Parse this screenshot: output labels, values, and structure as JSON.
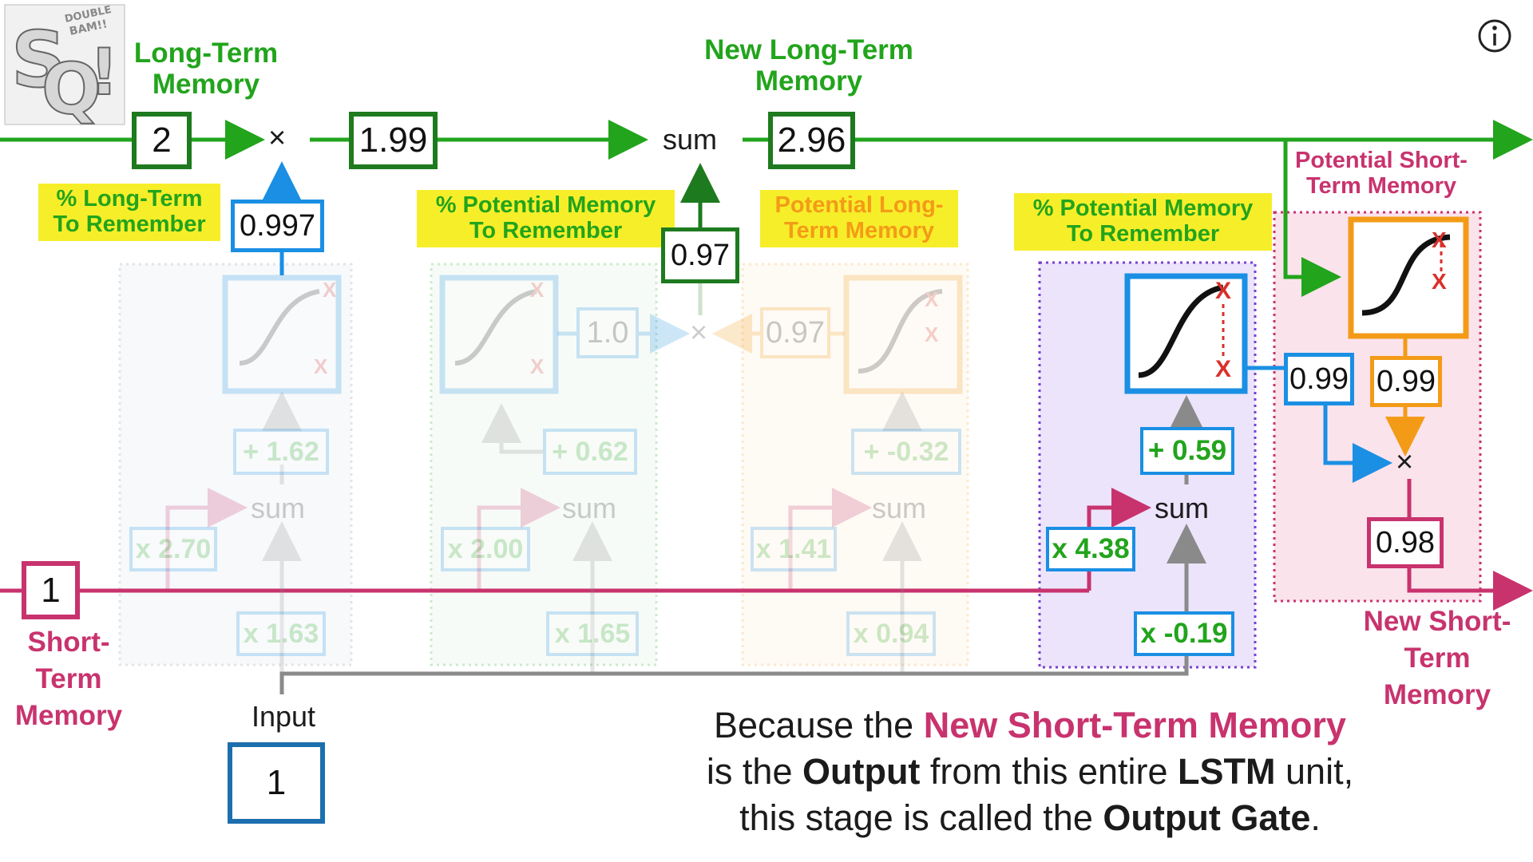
{
  "header": {
    "logo_text": "StatQuest",
    "info_icon": "info-circle-icon"
  },
  "labels": {
    "long_term_memory": [
      "Long-Term",
      "Memory"
    ],
    "new_long_term_memory": [
      "New Long-Term",
      "Memory"
    ],
    "pct_long_term_remember": [
      "% Long-Term",
      "To Remember"
    ],
    "pct_potential_memory_remember_1": [
      "% Potential Memory",
      "To Remember"
    ],
    "potential_long_term_memory": [
      "Potential Long-",
      "Term Memory"
    ],
    "pct_potential_memory_remember_2": [
      "% Potential Memory",
      "To Remember"
    ],
    "potential_short_term_memory": [
      "Potential Short-",
      "Term Memory"
    ],
    "short_term_memory": [
      "Short-",
      "Term",
      "Memory"
    ],
    "new_short_term_memory": [
      "New Short-",
      "Term",
      "Memory"
    ],
    "input": "Input"
  },
  "values": {
    "long_term_in": "2",
    "long_term_after_forget": "1.99",
    "new_long_term": "2.96",
    "forget_gate_out": "0.997",
    "potential_added": "0.97",
    "input_gate_pct": "1.0",
    "input_gate_potential": "0.97",
    "short_term_in": "1",
    "input_value": "1",
    "output_gate_pct": "0.99",
    "potential_short": "0.99",
    "new_short_term": "0.98"
  },
  "weights": {
    "forget": {
      "bias": "+ 1.62",
      "short_w": "x 2.70",
      "input_w": "x 1.63"
    },
    "input_pct": {
      "bias": "+ 0.62",
      "short_w": "x 2.00",
      "input_w": "x 1.65"
    },
    "input_potential": {
      "bias": "+ -0.32",
      "short_w": "x 1.41",
      "input_w": "x 0.94"
    },
    "output": {
      "bias": "+ 0.59",
      "short_w": "x 4.38",
      "input_w": "x -0.19"
    }
  },
  "operators": {
    "multiply": "×",
    "sum": "sum"
  },
  "caption": {
    "line1_pre": "Because the ",
    "line1_em": "New Short-Term Memory",
    "line2_a": "is the ",
    "line2_b": "Output",
    "line2_c": " from this entire ",
    "line2_d": "LSTM",
    "line2_e": " unit,",
    "line3_a": "this stage is called the ",
    "line3_b": "Output Gate",
    "line3_c": "."
  },
  "colors": {
    "green": "#22a41c",
    "dark_green": "#1e7a1e",
    "pink": "#c8336e",
    "blue": "#1a8fe3",
    "orange": "#f39b17",
    "gray": "#8a8a8a",
    "purple_bg": "#ece4fb",
    "pink_bg": "#fbe3ec",
    "highlight": "#f7ee2a"
  }
}
